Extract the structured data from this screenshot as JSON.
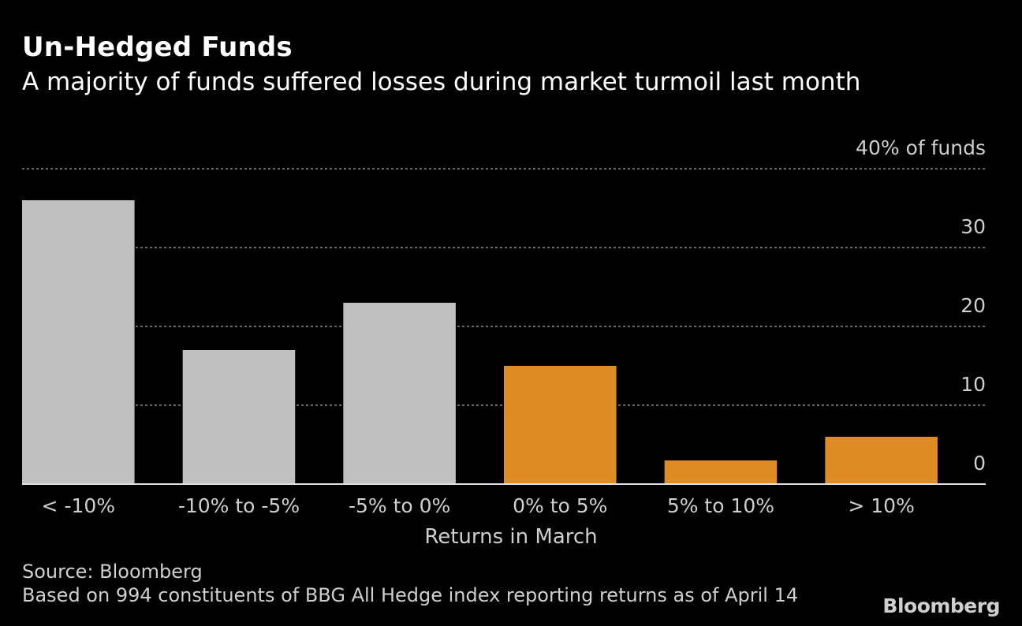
{
  "header": {
    "title": "Un-Hedged Funds",
    "subtitle": "A majority of funds suffered losses during market turmoil last month"
  },
  "footer": {
    "source": "Source: Bloomberg",
    "note": "Based on 994 constituents of BBG All Hedge index reporting returns as of April 14",
    "logo": "Bloomberg"
  },
  "chart_data": {
    "type": "bar",
    "categories": [
      "< -10%",
      "-10% to -5%",
      "-5% to 0%",
      "0% to 5%",
      "5% to 10%",
      "> 10%"
    ],
    "values": [
      36,
      17,
      23,
      15,
      3,
      6
    ],
    "bar_colors": [
      "#c0c0c0",
      "#c0c0c0",
      "#c0c0c0",
      "#e08c24",
      "#e08c24",
      "#e08c24"
    ],
    "xlabel": "Returns in March",
    "ylim": [
      0,
      40
    ],
    "y_ticks": [
      0,
      10,
      20,
      30,
      40
    ],
    "y_tick_labels": [
      "0",
      "10",
      "20",
      "30",
      "40% of funds"
    ],
    "grid": true,
    "y_axis_side": "right"
  }
}
